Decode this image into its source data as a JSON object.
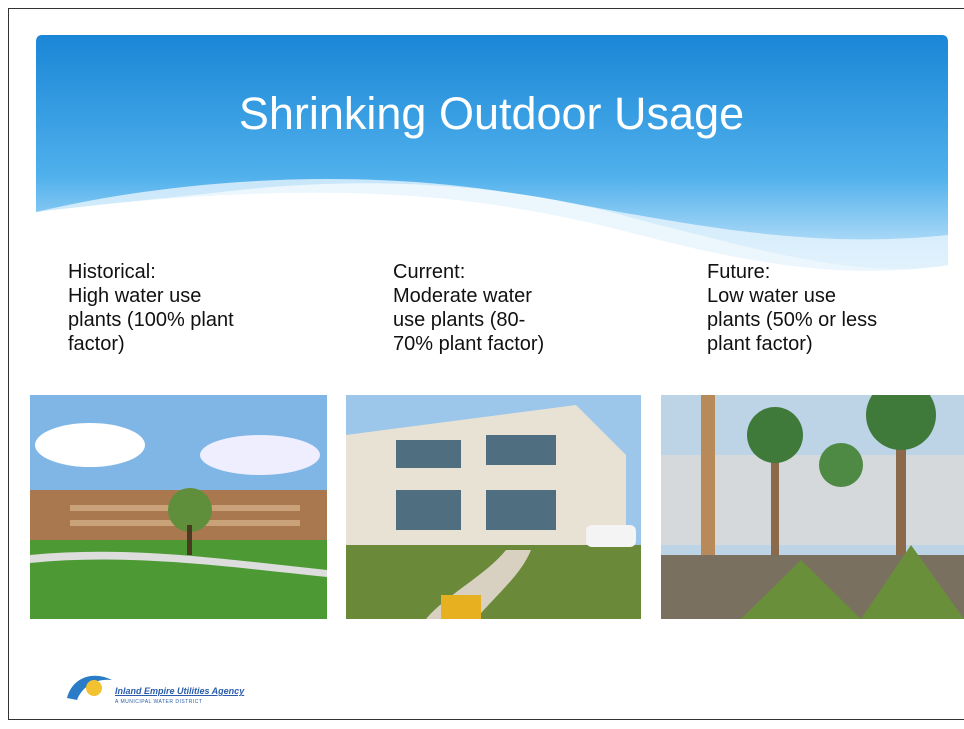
{
  "slide": {
    "title": "Shrinking Outdoor Usage",
    "columns": [
      {
        "heading": "Historical:",
        "lines": [
          "High water use",
          "plants (100% plant",
          "factor)"
        ]
      },
      {
        "heading": "Current:",
        "lines": [
          "Moderate water",
          "use plants (80-",
          "70% plant factor)"
        ]
      },
      {
        "heading": "Future:",
        "lines": [
          "Low water use",
          "plants (50% or less",
          "plant factor)"
        ]
      }
    ],
    "logo": {
      "name": "Inland Empire Utilities Agency",
      "tagline": "A MUNICIPAL WATER DISTRICT"
    }
  }
}
